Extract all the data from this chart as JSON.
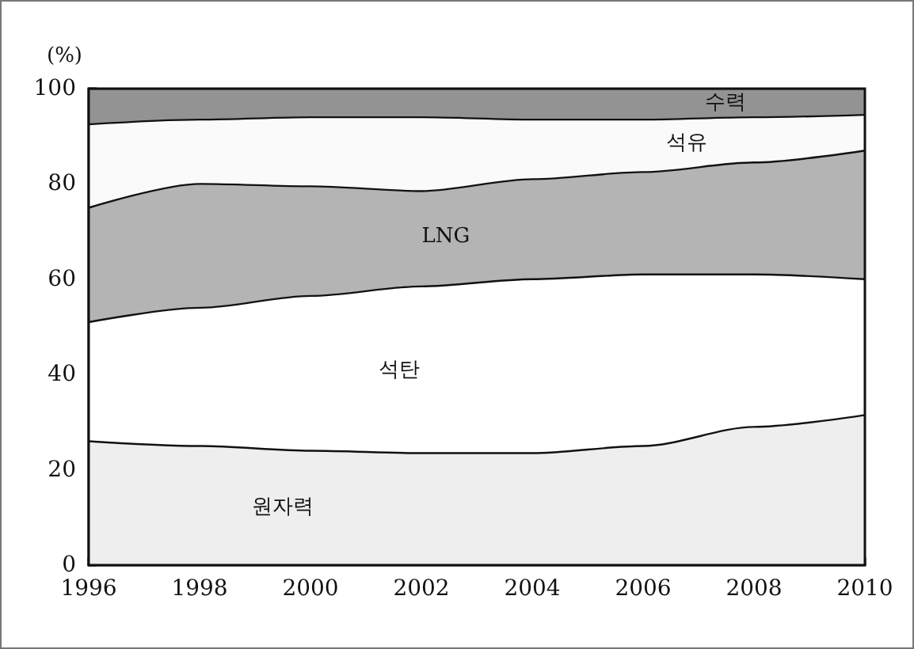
{
  "chart_data": {
    "type": "area",
    "stacked": true,
    "ylabel": "(%)",
    "x": [
      1996,
      1998,
      2000,
      2002,
      2004,
      2006,
      2008,
      2010
    ],
    "series": [
      {
        "name": "원자력",
        "color": "#eeeeee",
        "values": [
          26,
          25,
          24,
          23.5,
          23.5,
          25,
          29,
          31.5
        ]
      },
      {
        "name": "석탄",
        "color": "#ffffff",
        "values": [
          25,
          29,
          32.5,
          35,
          36.5,
          36,
          32,
          28.5
        ]
      },
      {
        "name": "LNG",
        "color": "#b4b4b4",
        "values": [
          24,
          26,
          23,
          20,
          21,
          21.5,
          23.5,
          27
        ]
      },
      {
        "name": "석유",
        "color": "#fafafa",
        "values": [
          17.5,
          13.5,
          14.5,
          15.5,
          12.5,
          11,
          9.5,
          7.5
        ]
      },
      {
        "name": "수력",
        "color": "#939393",
        "values": [
          7.5,
          6.5,
          6,
          6,
          6.5,
          6.5,
          6,
          5.5
        ]
      }
    ],
    "xlim": [
      1996,
      2010
    ],
    "xticks": [
      1996,
      1998,
      2000,
      2002,
      2004,
      2006,
      2008,
      2010
    ],
    "ylim": [
      0,
      100
    ],
    "yticks": [
      0,
      20,
      40,
      60,
      80,
      100
    ],
    "grid": false,
    "legend": false,
    "marker": "none",
    "line_style": "solid"
  }
}
